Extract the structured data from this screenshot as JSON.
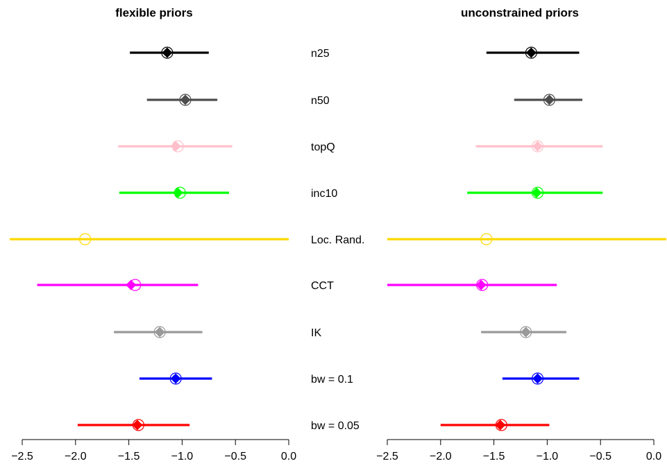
{
  "chart_data": {
    "type": "forest",
    "row_labels": [
      "n25",
      "n50",
      "topQ",
      "inc10",
      "Loc. Rand.",
      "CCT",
      "IK",
      "bw = 0.1",
      "bw = 0.05"
    ],
    "row_colors": [
      "#000000",
      "#4d4d4d",
      "#ffc0cb",
      "#00ff00",
      "#ffd700",
      "#ff00ff",
      "#999999",
      "#0000ff",
      "#ff0000"
    ],
    "xlim": [
      -2.5,
      0.0
    ],
    "xticks": [
      -2.5,
      -2.0,
      -1.5,
      -1.0,
      -0.5,
      0.0
    ],
    "xtick_labels": [
      "−2.5",
      "−2.0",
      "−1.5",
      "−1.0",
      "−0.5",
      "0.0"
    ],
    "panels": [
      {
        "title": "flexible priors",
        "rows": [
          {
            "lo": -1.49,
            "hi": -0.75,
            "diamond": -1.14,
            "circle": -1.14
          },
          {
            "lo": -1.33,
            "hi": -0.67,
            "diamond": -0.97,
            "circle": -0.97
          },
          {
            "lo": -1.6,
            "hi": -0.53,
            "diamond": -1.06,
            "circle": -1.04
          },
          {
            "lo": -1.59,
            "hi": -0.56,
            "diamond": -1.04,
            "circle": -1.02
          },
          {
            "lo": -2.62,
            "hi": 0.0,
            "diamond": null,
            "circle": -1.91
          },
          {
            "lo": -2.36,
            "hi": -0.85,
            "diamond": -1.48,
            "circle": -1.44
          },
          {
            "lo": -1.64,
            "hi": -0.81,
            "diamond": -1.21,
            "circle": -1.21
          },
          {
            "lo": -1.4,
            "hi": -0.72,
            "diamond": -1.06,
            "circle": -1.06
          },
          {
            "lo": -1.98,
            "hi": -0.93,
            "diamond": -1.42,
            "circle": -1.41
          }
        ]
      },
      {
        "title": "unconstrained priors",
        "rows": [
          {
            "lo": -1.57,
            "hi": -0.7,
            "diamond": -1.15,
            "circle": -1.15
          },
          {
            "lo": -1.31,
            "hi": -0.67,
            "diamond": -0.98,
            "circle": -0.98
          },
          {
            "lo": -1.67,
            "hi": -0.48,
            "diamond": -1.09,
            "circle": -1.09
          },
          {
            "lo": -1.75,
            "hi": -0.48,
            "diamond": -1.1,
            "circle": -1.09
          },
          {
            "lo": -2.6,
            "hi": 0.0,
            "diamond": null,
            "circle": -1.57
          },
          {
            "lo": -2.5,
            "hi": -0.91,
            "diamond": -1.62,
            "circle": -1.61
          },
          {
            "lo": -1.62,
            "hi": -0.82,
            "diamond": -1.2,
            "circle": -1.2
          },
          {
            "lo": -1.42,
            "hi": -0.7,
            "diamond": -1.09,
            "circle": -1.09
          },
          {
            "lo": -2.0,
            "hi": -0.98,
            "diamond": -1.44,
            "circle": -1.43
          }
        ]
      }
    ]
  }
}
